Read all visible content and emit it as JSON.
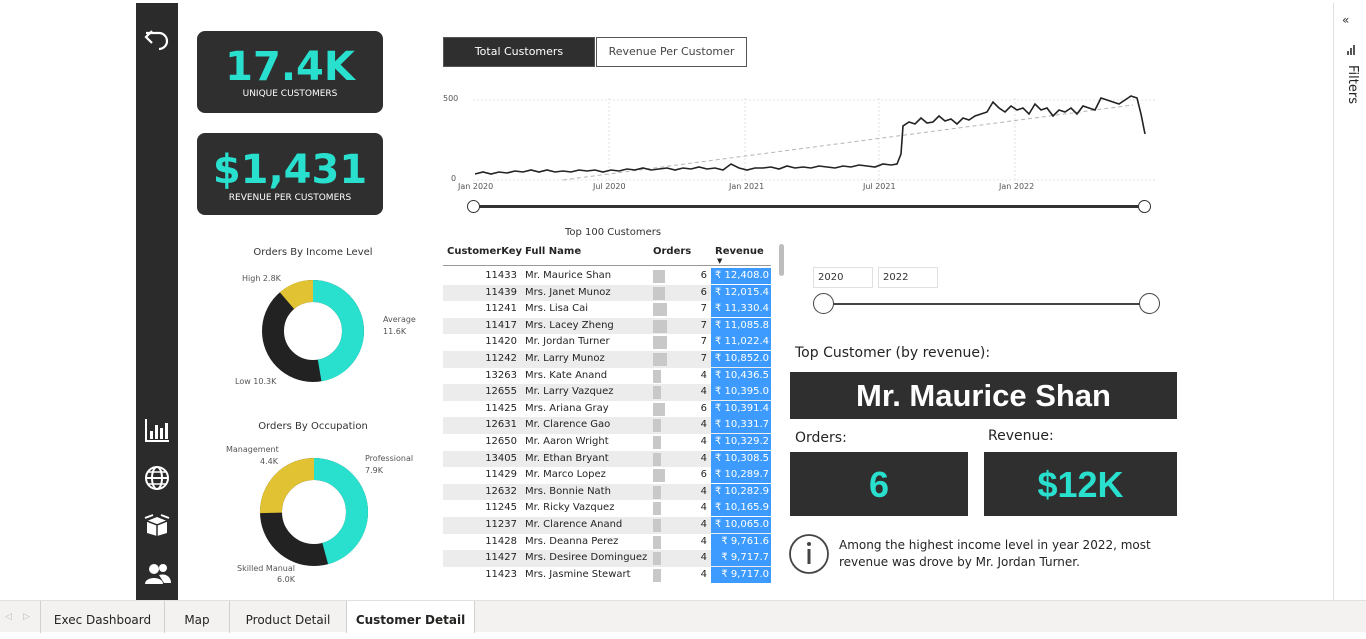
{
  "kpis": {
    "unique_customers_value": "17.4K",
    "unique_customers_label": "UNIQUE CUSTOMERS",
    "revenue_per_customer_value": "$1,431",
    "revenue_per_customer_label": "REVENUE PER CUSTOMERS"
  },
  "line_tabs": {
    "active": "Total Customers",
    "inactive": "Revenue Per Customer"
  },
  "line_chart": {
    "y_ticks": [
      "500",
      "0"
    ],
    "x_ticks": [
      "Jan 2020",
      "Jul 2020",
      "Jan 2021",
      "Jul 2021",
      "Jan 2022"
    ]
  },
  "donut_income": {
    "title": "Orders By Income Level",
    "slices": [
      {
        "label": "Average",
        "value": "11.6K",
        "color": "#29e0cf"
      },
      {
        "label": "Low",
        "value": "10.3K",
        "color": "#222222"
      },
      {
        "label": "High",
        "value": "2.8K",
        "color": "#e1c233"
      }
    ],
    "label_high": "High 2.8K",
    "label_average": "Average",
    "label_average_value": "11.6K",
    "label_low": "Low 10.3K"
  },
  "donut_occupation": {
    "title": "Orders By Occupation",
    "label_management": "Management",
    "label_management_value": "4.4K",
    "label_professional": "Professional",
    "label_professional_value": "7.9K",
    "label_skilled": "Skilled Manual",
    "label_skilled_value": "6.0K"
  },
  "table": {
    "title": "Top 100 Customers",
    "headers": {
      "key": "CustomerKey",
      "name": "Full Name",
      "orders": "Orders",
      "revenue": "Revenue"
    },
    "rows": [
      {
        "key": "11433",
        "name": "Mr. Maurice Shan",
        "orders": "6",
        "revenue": "₹ 12,408.0"
      },
      {
        "key": "11439",
        "name": "Mrs. Janet Munoz",
        "orders": "6",
        "revenue": "₹ 12,015.4"
      },
      {
        "key": "11241",
        "name": "Mrs. Lisa Cai",
        "orders": "7",
        "revenue": "₹ 11,330.4"
      },
      {
        "key": "11417",
        "name": "Mrs. Lacey Zheng",
        "orders": "7",
        "revenue": "₹ 11,085.8"
      },
      {
        "key": "11420",
        "name": "Mr. Jordan Turner",
        "orders": "7",
        "revenue": "₹ 11,022.4"
      },
      {
        "key": "11242",
        "name": "Mr. Larry Munoz",
        "orders": "7",
        "revenue": "₹ 10,852.0"
      },
      {
        "key": "13263",
        "name": "Mrs. Kate Anand",
        "orders": "4",
        "revenue": "₹ 10,436.5"
      },
      {
        "key": "12655",
        "name": "Mr. Larry Vazquez",
        "orders": "4",
        "revenue": "₹ 10,395.0"
      },
      {
        "key": "11425",
        "name": "Mrs. Ariana Gray",
        "orders": "6",
        "revenue": "₹ 10,391.4"
      },
      {
        "key": "12631",
        "name": "Mr. Clarence Gao",
        "orders": "4",
        "revenue": "₹ 10,331.7"
      },
      {
        "key": "12650",
        "name": "Mr. Aaron Wright",
        "orders": "4",
        "revenue": "₹ 10,329.2"
      },
      {
        "key": "13405",
        "name": "Mr. Ethan Bryant",
        "orders": "4",
        "revenue": "₹ 10,308.5"
      },
      {
        "key": "11429",
        "name": "Mr. Marco Lopez",
        "orders": "6",
        "revenue": "₹ 10,289.7"
      },
      {
        "key": "12632",
        "name": "Mrs. Bonnie Nath",
        "orders": "4",
        "revenue": "₹ 10,282.9"
      },
      {
        "key": "11245",
        "name": "Mr. Ricky Vazquez",
        "orders": "4",
        "revenue": "₹ 10,165.9"
      },
      {
        "key": "11237",
        "name": "Mr. Clarence Anand",
        "orders": "4",
        "revenue": "₹ 10,065.0"
      },
      {
        "key": "11428",
        "name": "Mrs. Deanna Perez",
        "orders": "4",
        "revenue": "₹ 9,761.6"
      },
      {
        "key": "11427",
        "name": "Mrs. Desiree Dominguez",
        "orders": "4",
        "revenue": "₹ 9,717.7"
      },
      {
        "key": "11423",
        "name": "Mrs. Jasmine Stewart",
        "orders": "4",
        "revenue": "₹ 9,717.0"
      }
    ]
  },
  "year_filter": {
    "start": "2020",
    "end": "2022"
  },
  "top_customer": {
    "heading": "Top Customer (by revenue):",
    "name": "Mr. Maurice Shan",
    "orders_label": "Orders:",
    "orders_value": "6",
    "revenue_label": "Revenue:",
    "revenue_value": "$12K"
  },
  "insight": "Among the highest income level in year 2022, most revenue was drove by Mr. Jordan Turner.",
  "filters_label": "Filters",
  "page_tabs": [
    "Exec Dashboard",
    "Map",
    "Product Detail",
    "Customer Detail"
  ],
  "accent_color": "#29e0cf",
  "bar_color": "#3d9bff"
}
